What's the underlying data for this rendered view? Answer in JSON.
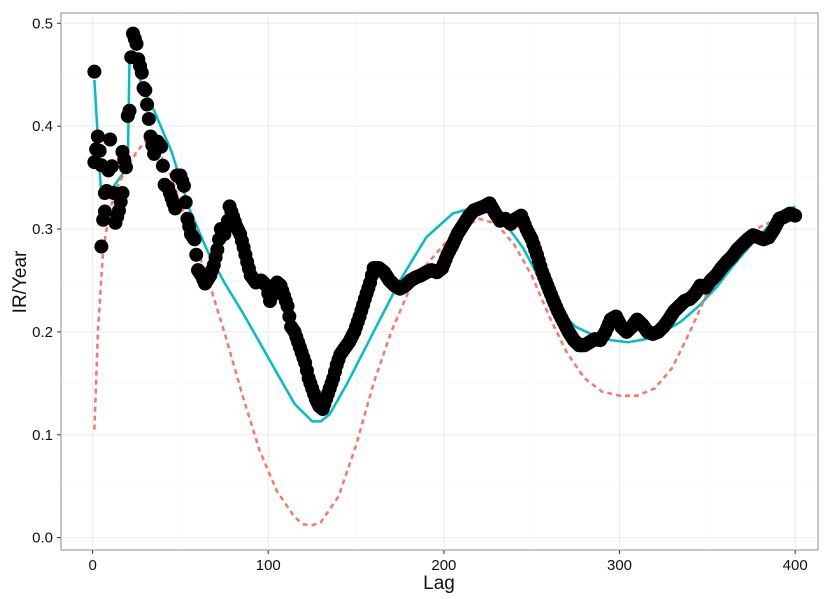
{
  "chart_data": {
    "type": "scatter",
    "xlabel": "Lag",
    "ylabel": "IR/Year",
    "xlim": [
      -18,
      413
    ],
    "ylim": [
      -0.012,
      0.51
    ],
    "x_ticks": [
      0,
      100,
      200,
      300,
      400
    ],
    "y_ticks": [
      0.0,
      0.1,
      0.2,
      0.3,
      0.4,
      0.5
    ],
    "x_tick_labels": [
      "0",
      "100",
      "200",
      "300",
      "400"
    ],
    "y_tick_labels": [
      "0.0",
      "0.1",
      "0.2",
      "0.3",
      "0.4",
      "0.5"
    ],
    "grid": true,
    "legend": "none",
    "series": [
      {
        "kind": "points",
        "color": "#000000",
        "anchors": [
          [
            1,
            0.453
          ],
          [
            1,
            0.365
          ],
          [
            3,
            0.39
          ],
          [
            5,
            0.362
          ],
          [
            5,
            0.283
          ],
          [
            7,
            0.335
          ],
          [
            7,
            0.317
          ],
          [
            9,
            0.357
          ],
          [
            10,
            0.387
          ],
          [
            12,
            0.335
          ],
          [
            13,
            0.306
          ],
          [
            15,
            0.318
          ],
          [
            17,
            0.335
          ],
          [
            17,
            0.375
          ],
          [
            19,
            0.36
          ],
          [
            20,
            0.41
          ],
          [
            21,
            0.415
          ],
          [
            22,
            0.467
          ],
          [
            23,
            0.49
          ],
          [
            25,
            0.48
          ],
          [
            26,
            0.465
          ],
          [
            28,
            0.452
          ],
          [
            29,
            0.437
          ],
          [
            30,
            0.435
          ],
          [
            32,
            0.407
          ],
          [
            33,
            0.39
          ],
          [
            35,
            0.373
          ],
          [
            37,
            0.385
          ],
          [
            39,
            0.38
          ],
          [
            41,
            0.343
          ],
          [
            43,
            0.34
          ],
          [
            45,
            0.33
          ],
          [
            47,
            0.32
          ],
          [
            48,
            0.352
          ],
          [
            50,
            0.352
          ],
          [
            52,
            0.342
          ],
          [
            54,
            0.31
          ],
          [
            56,
            0.295
          ],
          [
            58,
            0.29
          ],
          [
            60,
            0.26
          ],
          [
            62,
            0.255
          ],
          [
            64,
            0.247
          ],
          [
            67,
            0.255
          ],
          [
            69,
            0.265
          ],
          [
            71,
            0.28
          ],
          [
            73,
            0.3
          ],
          [
            75,
            0.295
          ],
          [
            77,
            0.308
          ],
          [
            78,
            0.322
          ],
          [
            80,
            0.312
          ],
          [
            82,
            0.302
          ],
          [
            84,
            0.295
          ],
          [
            86,
            0.282
          ],
          [
            88,
            0.268
          ],
          [
            90,
            0.255
          ],
          [
            93,
            0.248
          ],
          [
            96,
            0.25
          ],
          [
            99,
            0.245
          ],
          [
            101,
            0.23
          ],
          [
            103,
            0.24
          ],
          [
            105,
            0.248
          ],
          [
            107,
            0.245
          ],
          [
            109,
            0.235
          ],
          [
            111,
            0.225
          ],
          [
            113,
            0.205
          ],
          [
            115,
            0.2
          ],
          [
            117,
            0.19
          ],
          [
            119,
            0.18
          ],
          [
            121,
            0.17
          ],
          [
            123,
            0.155
          ],
          [
            125,
            0.145
          ],
          [
            127,
            0.135
          ],
          [
            129,
            0.128
          ],
          [
            131,
            0.125
          ],
          [
            133,
            0.135
          ],
          [
            135,
            0.145
          ],
          [
            137,
            0.155
          ],
          [
            139,
            0.168
          ],
          [
            141,
            0.178
          ],
          [
            143,
            0.183
          ],
          [
            146,
            0.19
          ],
          [
            149,
            0.2
          ],
          [
            152,
            0.215
          ],
          [
            155,
            0.232
          ],
          [
            158,
            0.248
          ],
          [
            160,
            0.262
          ],
          [
            163,
            0.262
          ],
          [
            166,
            0.258
          ],
          [
            169,
            0.25
          ],
          [
            172,
            0.245
          ],
          [
            175,
            0.242
          ],
          [
            178,
            0.245
          ],
          [
            181,
            0.25
          ],
          [
            184,
            0.253
          ],
          [
            187,
            0.255
          ],
          [
            190,
            0.258
          ],
          [
            193,
            0.26
          ],
          [
            196,
            0.258
          ],
          [
            199,
            0.262
          ],
          [
            202,
            0.275
          ],
          [
            205,
            0.285
          ],
          [
            208,
            0.296
          ],
          [
            211,
            0.304
          ],
          [
            214,
            0.312
          ],
          [
            217,
            0.318
          ],
          [
            220,
            0.32
          ],
          [
            223,
            0.322
          ],
          [
            226,
            0.325
          ],
          [
            229,
            0.316
          ],
          [
            232,
            0.308
          ],
          [
            235,
            0.31
          ],
          [
            238,
            0.305
          ],
          [
            241,
            0.31
          ],
          [
            244,
            0.313
          ],
          [
            247,
            0.3
          ],
          [
            250,
            0.29
          ],
          [
            253,
            0.275
          ],
          [
            256,
            0.258
          ],
          [
            259,
            0.245
          ],
          [
            262,
            0.232
          ],
          [
            265,
            0.22
          ],
          [
            268,
            0.21
          ],
          [
            271,
            0.2
          ],
          [
            274,
            0.192
          ],
          [
            277,
            0.187
          ],
          [
            280,
            0.187
          ],
          [
            283,
            0.19
          ],
          [
            286,
            0.193
          ],
          [
            289,
            0.192
          ],
          [
            292,
            0.2
          ],
          [
            295,
            0.212
          ],
          [
            298,
            0.215
          ],
          [
            301,
            0.205
          ],
          [
            304,
            0.2
          ],
          [
            307,
            0.205
          ],
          [
            310,
            0.212
          ],
          [
            313,
            0.207
          ],
          [
            316,
            0.2
          ],
          [
            319,
            0.198
          ],
          [
            322,
            0.2
          ],
          [
            325,
            0.205
          ],
          [
            328,
            0.212
          ],
          [
            331,
            0.22
          ],
          [
            334,
            0.225
          ],
          [
            337,
            0.23
          ],
          [
            340,
            0.232
          ],
          [
            343,
            0.237
          ],
          [
            346,
            0.245
          ],
          [
            349,
            0.243
          ],
          [
            352,
            0.25
          ],
          [
            355,
            0.255
          ],
          [
            358,
            0.262
          ],
          [
            361,
            0.268
          ],
          [
            364,
            0.273
          ],
          [
            367,
            0.28
          ],
          [
            370,
            0.285
          ],
          [
            373,
            0.29
          ],
          [
            376,
            0.294
          ],
          [
            379,
            0.292
          ],
          [
            382,
            0.29
          ],
          [
            385,
            0.292
          ],
          [
            388,
            0.3
          ],
          [
            391,
            0.31
          ],
          [
            394,
            0.312
          ],
          [
            397,
            0.315
          ],
          [
            400,
            0.313
          ]
        ]
      },
      {
        "kind": "line",
        "color": "#00BFC4",
        "style": "solid",
        "x": [
          1,
          5,
          10,
          20,
          21,
          23,
          28,
          35,
          45,
          55,
          65,
          75,
          85,
          95,
          105,
          115,
          125,
          130,
          135,
          145,
          160,
          175,
          190,
          205,
          215,
          225,
          235,
          245,
          255,
          265,
          275,
          285,
          295,
          305,
          315,
          325,
          335,
          345,
          355,
          365,
          375,
          385,
          395,
          400
        ],
        "y": [
          0.445,
          0.33,
          0.337,
          0.36,
          0.465,
          0.465,
          0.44,
          0.415,
          0.375,
          0.32,
          0.28,
          0.248,
          0.22,
          0.19,
          0.16,
          0.13,
          0.113,
          0.113,
          0.12,
          0.15,
          0.2,
          0.25,
          0.292,
          0.315,
          0.32,
          0.318,
          0.305,
          0.282,
          0.25,
          0.222,
          0.205,
          0.197,
          0.192,
          0.19,
          0.193,
          0.2,
          0.21,
          0.225,
          0.243,
          0.265,
          0.285,
          0.303,
          0.317,
          0.322
        ]
      },
      {
        "kind": "line",
        "color": "#F8766D",
        "style": "dashed",
        "x": [
          1,
          3,
          6,
          10,
          15,
          20,
          25,
          30,
          35,
          45,
          55,
          65,
          75,
          85,
          95,
          105,
          115,
          120,
          125,
          130,
          140,
          150,
          160,
          170,
          180,
          190,
          200,
          210,
          220,
          230,
          240,
          250,
          260,
          270,
          280,
          290,
          300,
          310,
          320,
          330,
          340,
          350,
          360,
          370,
          380,
          390,
          400
        ],
        "y": [
          0.105,
          0.2,
          0.28,
          0.32,
          0.345,
          0.36,
          0.375,
          0.385,
          0.385,
          0.35,
          0.3,
          0.255,
          0.2,
          0.14,
          0.085,
          0.045,
          0.02,
          0.013,
          0.012,
          0.015,
          0.04,
          0.09,
          0.15,
          0.2,
          0.24,
          0.265,
          0.285,
          0.3,
          0.31,
          0.305,
          0.285,
          0.255,
          0.215,
          0.18,
          0.155,
          0.142,
          0.138,
          0.138,
          0.145,
          0.165,
          0.2,
          0.238,
          0.27,
          0.29,
          0.302,
          0.31,
          0.315
        ]
      }
    ]
  }
}
